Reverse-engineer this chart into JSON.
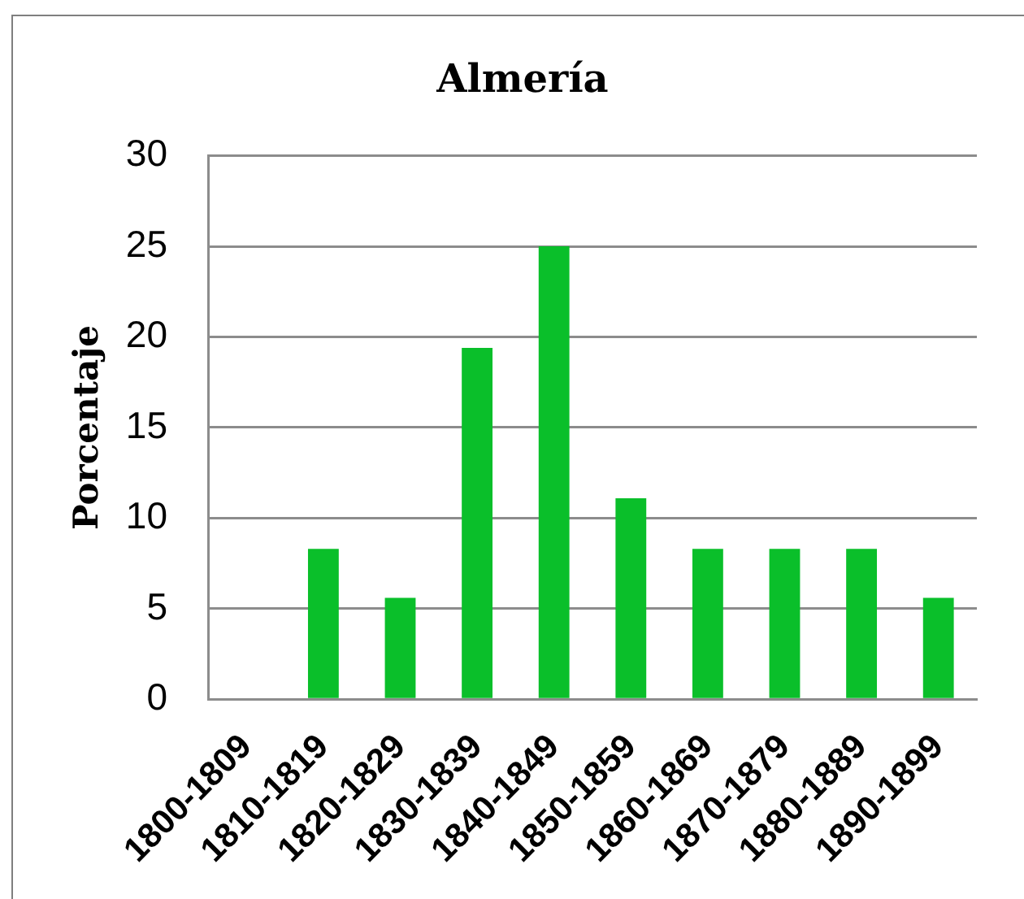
{
  "chart_data": {
    "type": "bar",
    "title": "Almería",
    "ylabel": "Porcentaje",
    "categories": [
      "1800-1809",
      "1810-1819",
      "1820-1829",
      "1830-1839",
      "1840-1849",
      "1850-1859",
      "1860-1869",
      "1870-1879",
      "1880-1889",
      "1890-1899"
    ],
    "values": [
      0,
      8.3,
      5.6,
      19.4,
      25,
      11.1,
      8.3,
      8.3,
      8.3,
      5.6
    ],
    "color": "#0abf2a",
    "ylim": [
      0,
      30
    ],
    "yticks": [
      0,
      5,
      10,
      15,
      20,
      25,
      30
    ],
    "grid": "y",
    "legend": false
  }
}
